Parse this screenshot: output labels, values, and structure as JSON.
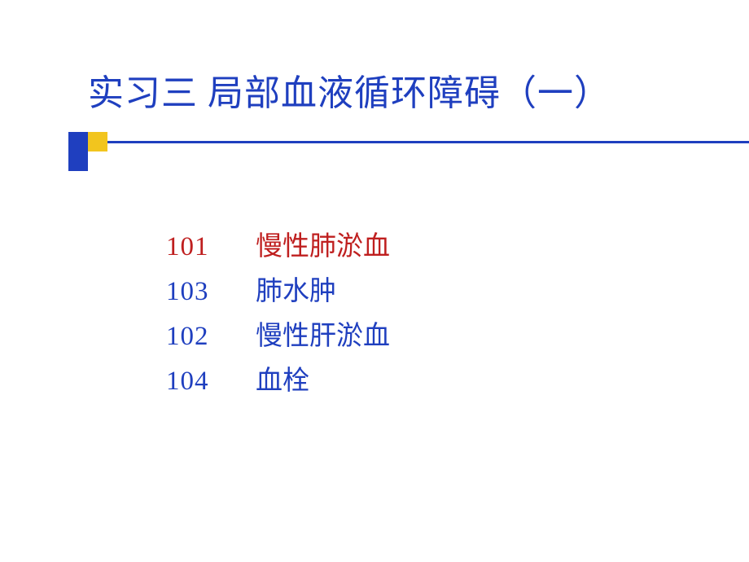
{
  "title": {
    "text": "实习三   局部血液循环障碍（一）",
    "color": "#1f3fbf",
    "fontsize": 44
  },
  "decor": {
    "blue": "#1f3fbf",
    "yellow": "#f2c51e",
    "line_color": "#1f3fbf"
  },
  "items": [
    {
      "num": "101",
      "label": "慢性肺淤血",
      "color": "#bf1f1f"
    },
    {
      "num": "103",
      "label": "肺水肿",
      "color": "#1f3fbf"
    },
    {
      "num": "102",
      "label": "慢性肝淤血",
      "color": "#1f3fbf"
    },
    {
      "num": "104",
      "label": "血栓",
      "color": "#1f3fbf"
    }
  ],
  "item_fontsize": 33
}
